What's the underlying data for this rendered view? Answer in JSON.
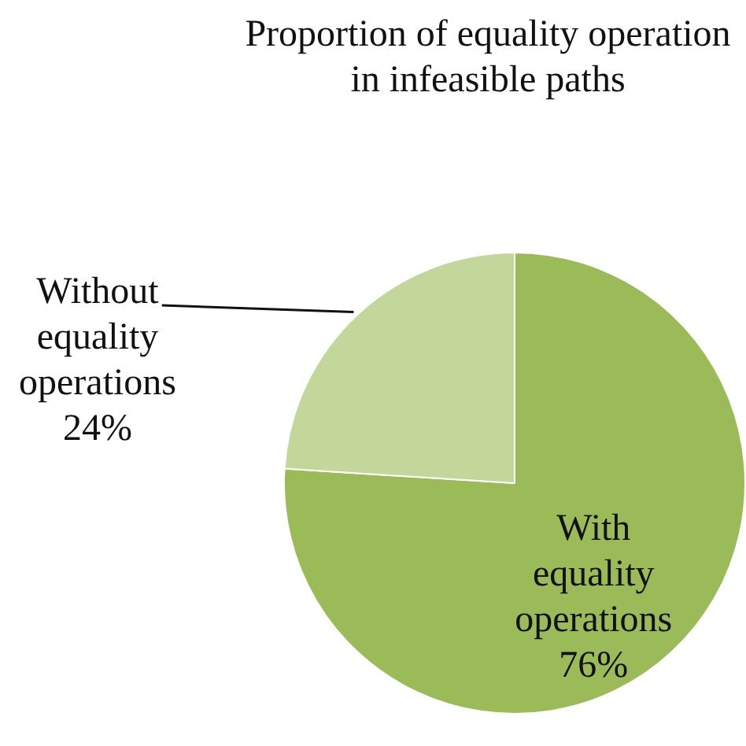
{
  "chart_data": {
    "type": "pie",
    "title": "Proportion of equality operation in infeasible paths",
    "categories": [
      "With equality operations",
      "Without equality operations"
    ],
    "values": [
      76,
      24
    ],
    "colors": [
      "#9bbb59",
      "#c4d79b"
    ],
    "value_labels": [
      "76%",
      "24%"
    ],
    "legend": false
  }
}
